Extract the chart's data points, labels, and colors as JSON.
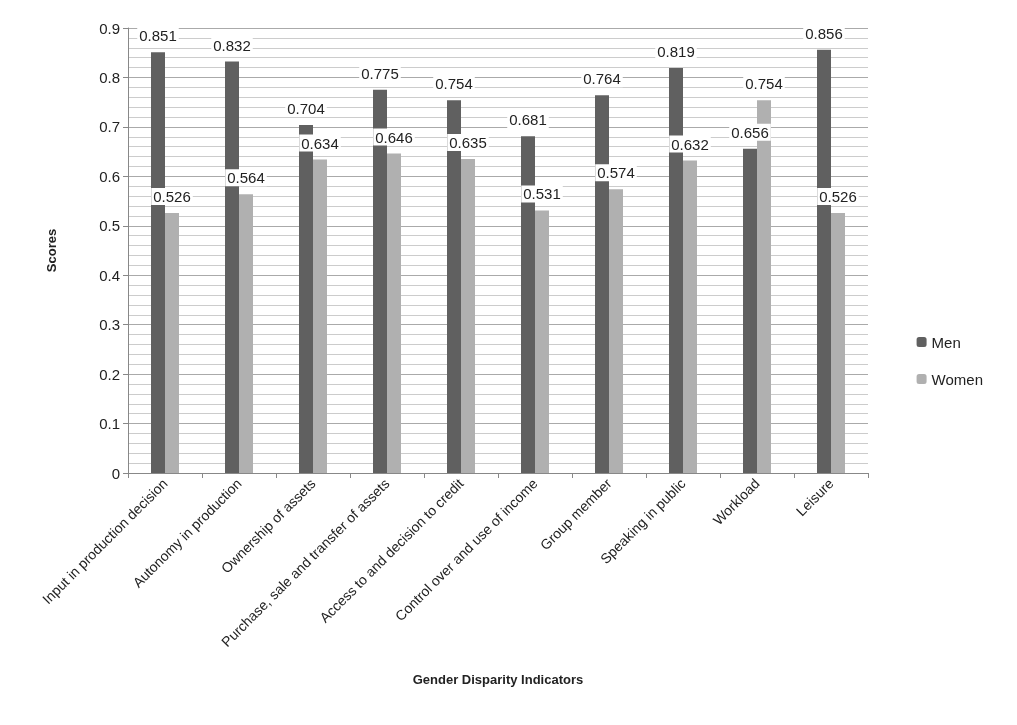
{
  "chart_data": {
    "type": "bar",
    "xlabel": "Gender Disparity Indicators",
    "ylabel": "Scores",
    "categories": [
      "Input in production decision",
      "Autonomy in production",
      "Ownership of assets",
      "Purchase, sale and transfer of assets",
      "Access to and decision to credit",
      "Control over and use of income",
      "Group member",
      "Speaking in public",
      "Workload",
      "Leisure"
    ],
    "series": [
      {
        "name": "Men",
        "color": "#606060",
        "values": [
          0.851,
          0.832,
          0.704,
          0.775,
          0.754,
          0.681,
          0.764,
          0.819,
          0.656,
          0.856
        ]
      },
      {
        "name": "Women",
        "color": "#b0b0b0",
        "values": [
          0.526,
          0.564,
          0.634,
          0.646,
          0.635,
          0.531,
          0.574,
          0.632,
          0.754,
          0.526
        ]
      }
    ],
    "ylim": [
      0,
      0.9
    ],
    "yticks": [
      0,
      0.1,
      0.2,
      0.3,
      0.4,
      0.5,
      0.6,
      0.7,
      0.8,
      0.9
    ],
    "grid": true,
    "legend": "right",
    "data_labels": true
  }
}
